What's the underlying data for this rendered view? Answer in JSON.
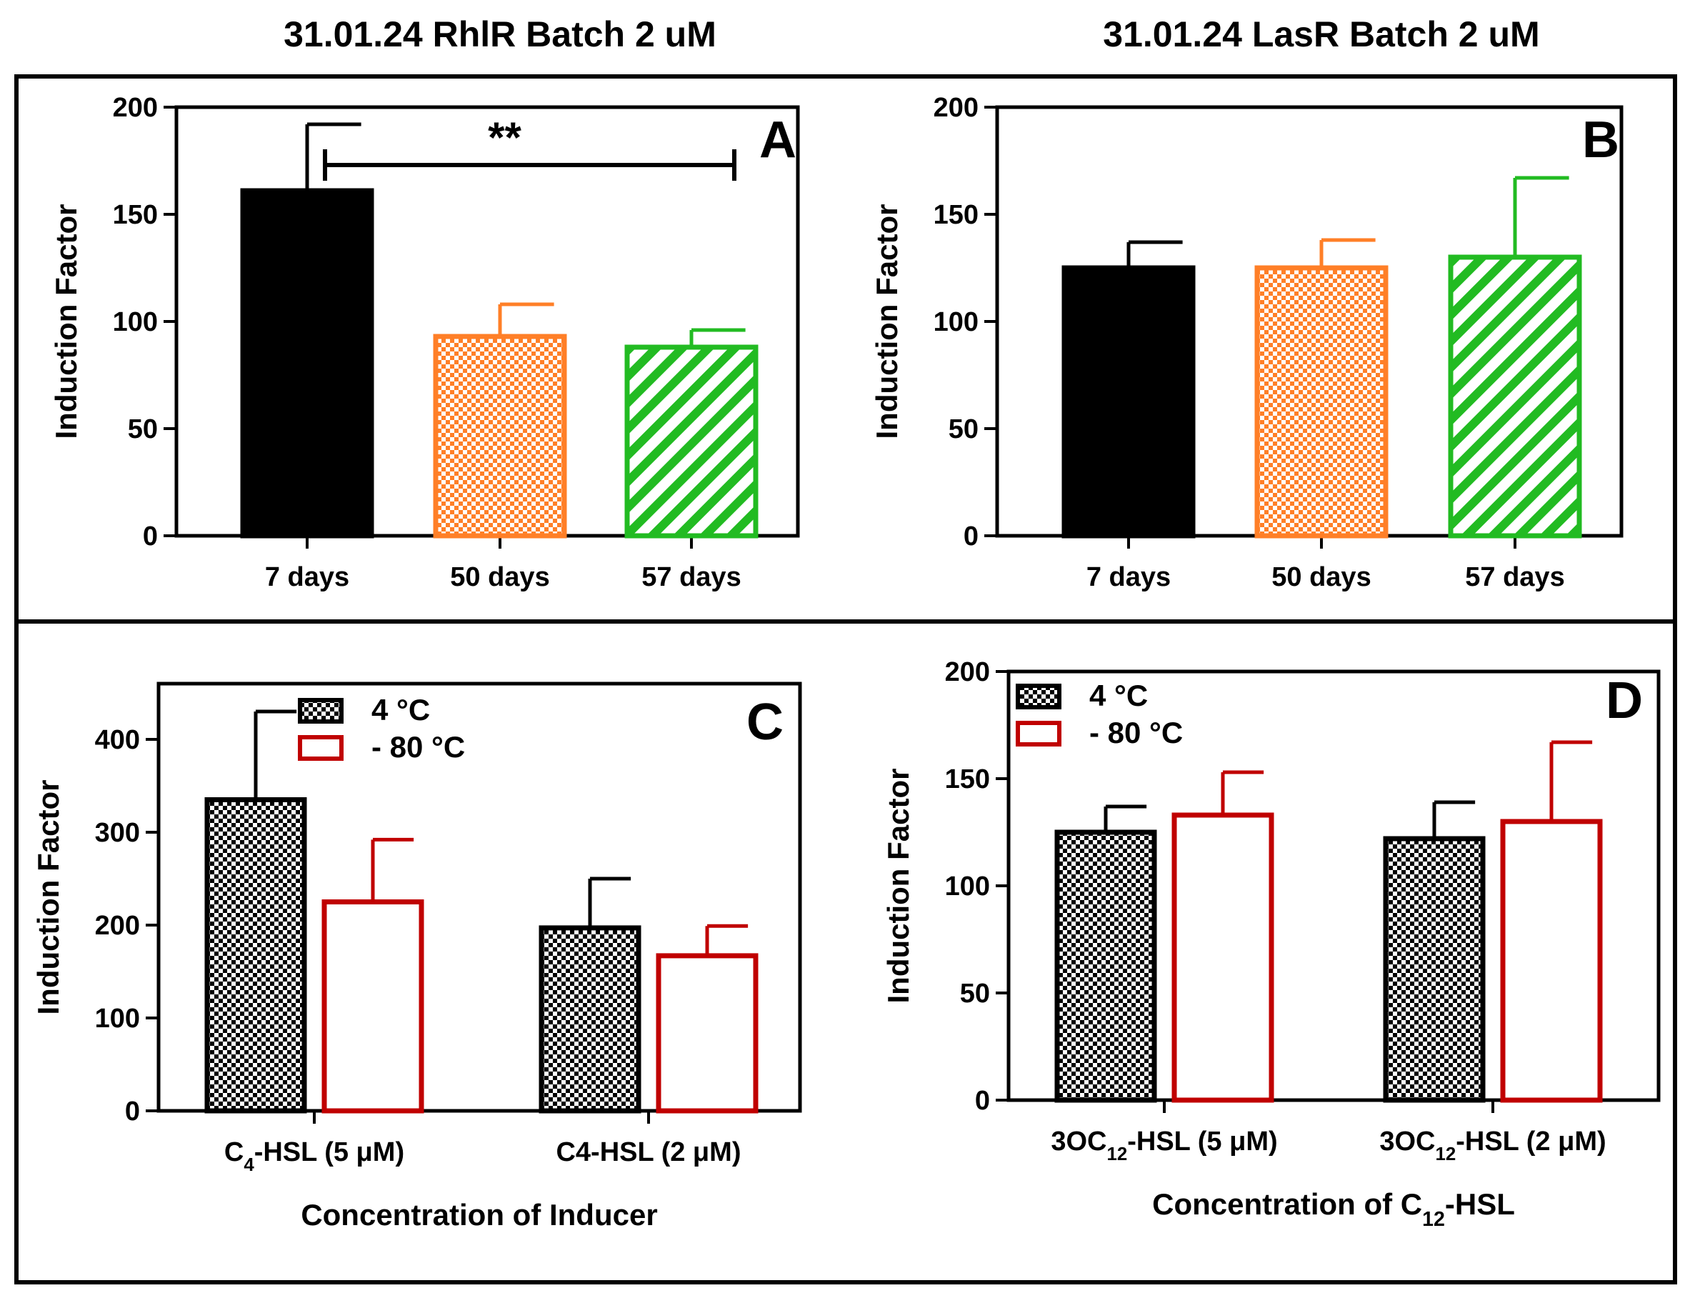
{
  "headers": {
    "left": "31.01.24 RhlR Batch 2 uM",
    "right": "31.01.24 LasR Batch 2 uM"
  },
  "colors": {
    "black": "#000000",
    "orange": "#FF7F27",
    "green": "#22BB22",
    "red": "#C00000"
  },
  "chart_data": [
    {
      "id": "A",
      "type": "bar",
      "panel_letter": "A",
      "ylabel": "Induction Factor",
      "xlabel": "",
      "ylim": [
        0,
        200
      ],
      "yticks": [
        "0",
        "50",
        "100",
        "150",
        "200"
      ],
      "categories": [
        "7 days",
        "50 days",
        "57 days"
      ],
      "values": [
        161,
        93,
        88
      ],
      "errors": [
        31,
        15,
        8
      ],
      "fills": [
        "solid-black",
        "checker-orange",
        "stripe-green"
      ],
      "significance": {
        "label": "**",
        "from": 0,
        "to": 2,
        "y": 173
      }
    },
    {
      "id": "B",
      "type": "bar",
      "panel_letter": "B",
      "ylabel": "Induction Factor",
      "xlabel": "",
      "ylim": [
        0,
        200
      ],
      "yticks": [
        "0",
        "50",
        "100",
        "150",
        "200"
      ],
      "categories": [
        "7 days",
        "50 days",
        "57 days"
      ],
      "values": [
        125,
        125,
        130
      ],
      "errors": [
        12,
        13,
        37
      ],
      "fills": [
        "solid-black",
        "checker-orange",
        "stripe-green"
      ]
    },
    {
      "id": "C",
      "type": "bar",
      "panel_letter": "C",
      "ylabel": "Induction Factor",
      "xlabel": "Concentration of Inducer",
      "ylim": [
        0,
        460
      ],
      "yticks": [
        "0",
        "100",
        "200",
        "300",
        "400"
      ],
      "categories": [
        {
          "pre": "C",
          "sub": "4",
          "post": "-HSL (5 μM)"
        },
        {
          "pre": "C4-HSL (2 μM)",
          "sub": "",
          "post": ""
        }
      ],
      "series": [
        {
          "name": "4 °C",
          "values": [
            335,
            197
          ],
          "errors": [
            95,
            53
          ],
          "fill": "checker-black"
        },
        {
          "name": "- 80 °C",
          "values": [
            225,
            167
          ],
          "errors": [
            67,
            32
          ],
          "fill": "outline-red"
        }
      ],
      "legend_position": "top-left"
    },
    {
      "id": "D",
      "type": "bar",
      "panel_letter": "D",
      "ylabel": "Induction Factor",
      "xlabel": {
        "pre": "Concentration of C",
        "sub": "12",
        "post": "-HSL"
      },
      "ylim": [
        0,
        200
      ],
      "yticks": [
        "0",
        "50",
        "100",
        "150",
        "200"
      ],
      "categories": [
        {
          "pre": "3OC",
          "sub": "12",
          "post": "-HSL (5 μM)"
        },
        {
          "pre": "3OC",
          "sub": "12",
          "post": "-HSL (2 μM)"
        }
      ],
      "series": [
        {
          "name": "4 °C",
          "values": [
            125,
            122
          ],
          "errors": [
            12,
            17
          ],
          "fill": "checker-black"
        },
        {
          "name": "- 80 °C",
          "values": [
            133,
            130
          ],
          "errors": [
            20,
            37
          ],
          "fill": "outline-red"
        }
      ],
      "legend_position": "top-left"
    }
  ]
}
